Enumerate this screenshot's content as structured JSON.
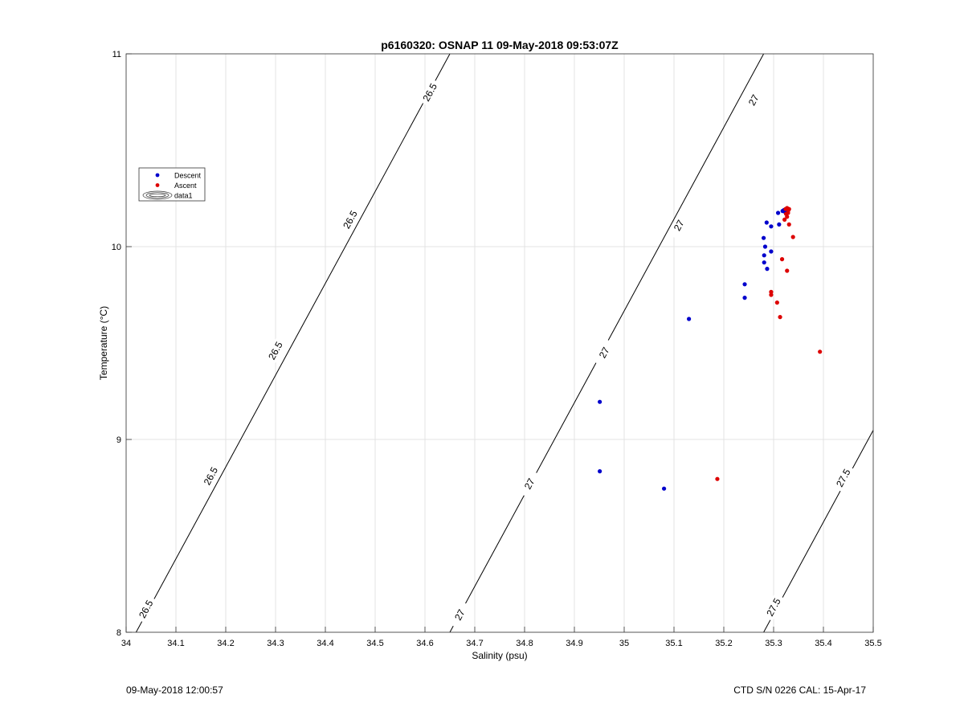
{
  "chart_data": {
    "type": "scatter",
    "title": "p6160320: OSNAP 11 09-May-2018 09:53:07Z",
    "xlabel": "Salinity (psu)",
    "ylabel": "Temperature (°C)",
    "xlim": [
      34,
      35.5
    ],
    "ylim": [
      8,
      11
    ],
    "xticks": [
      34,
      34.1,
      34.2,
      34.3,
      34.4,
      34.5,
      34.6,
      34.7,
      34.8,
      34.9,
      35,
      35.1,
      35.2,
      35.3,
      35.4,
      35.5
    ],
    "xtick_labels": [
      "34",
      "34.1",
      "34.2",
      "34.3",
      "34.4",
      "34.5",
      "34.6",
      "34.7",
      "34.8",
      "34.9",
      "35",
      "35.1",
      "35.2",
      "35.3",
      "35.4",
      "35.5"
    ],
    "yticks": [
      8,
      9,
      10,
      11
    ],
    "ytick_labels": [
      "8",
      "9",
      "10",
      "11"
    ],
    "grid": true,
    "legend": {
      "position": "upper-left",
      "entries": [
        "Descent",
        "Ascent",
        "data1"
      ]
    },
    "series": [
      {
        "name": "Descent",
        "color": "#0000cc",
        "points": [
          [
            34.951,
            9.195
          ],
          [
            34.951,
            8.835
          ],
          [
            35.08,
            8.745
          ],
          [
            35.13,
            9.625
          ],
          [
            35.242,
            9.735
          ],
          [
            35.242,
            9.805
          ],
          [
            35.281,
            9.918
          ],
          [
            35.281,
            9.955
          ],
          [
            35.28,
            10.045
          ],
          [
            35.283,
            10.0
          ],
          [
            35.287,
            9.885
          ],
          [
            35.295,
            9.975
          ],
          [
            35.286,
            10.125
          ],
          [
            35.295,
            10.105
          ],
          [
            35.309,
            10.175
          ],
          [
            35.311,
            10.115
          ],
          [
            35.318,
            10.185
          ],
          [
            35.321,
            10.19
          ],
          [
            35.323,
            10.18
          ]
        ]
      },
      {
        "name": "Ascent",
        "color": "#dd0000",
        "points": [
          [
            35.187,
            8.795
          ],
          [
            35.393,
            9.455
          ],
          [
            35.313,
            9.635
          ],
          [
            35.307,
            9.71
          ],
          [
            35.295,
            9.75
          ],
          [
            35.295,
            9.765
          ],
          [
            35.327,
            9.875
          ],
          [
            35.317,
            9.935
          ],
          [
            35.339,
            10.05
          ],
          [
            35.331,
            10.115
          ],
          [
            35.322,
            10.14
          ],
          [
            35.327,
            10.155
          ],
          [
            35.325,
            10.17
          ],
          [
            35.329,
            10.175
          ],
          [
            35.33,
            10.19
          ],
          [
            35.324,
            10.195
          ],
          [
            35.327,
            10.2
          ],
          [
            35.331,
            10.195
          ]
        ]
      }
    ],
    "contours": {
      "series_name": "data1",
      "levels": [
        {
          "value": 26.5,
          "label": "26.5",
          "x_at_ymin": 34.02,
          "x_at_ymax": 34.65,
          "label_positions": [
            [
              34.04,
              8.12
            ],
            [
              34.17,
              8.81
            ],
            [
              34.3,
              9.46
            ],
            [
              34.45,
              10.14
            ],
            [
              34.61,
              10.8
            ]
          ]
        },
        {
          "value": 27.0,
          "label": "27",
          "x_at_ymin": 34.65,
          "x_at_ymax": 35.28,
          "label_positions": [
            [
              34.67,
              8.09
            ],
            [
              34.81,
              8.77
            ],
            [
              34.96,
              9.45
            ],
            [
              35.11,
              10.11
            ],
            [
              35.26,
              10.76
            ]
          ]
        },
        {
          "value": 27.5,
          "label": "27.5",
          "x_at_ymin": 35.28,
          "x_at_ymax": 35.91,
          "label_positions": [
            [
              35.3,
              8.13
            ],
            [
              35.44,
              8.8
            ]
          ]
        }
      ]
    }
  },
  "footer": {
    "left": "09-May-2018 12:00:57",
    "right": "CTD S/N 0226  CAL: 15-Apr-17"
  }
}
